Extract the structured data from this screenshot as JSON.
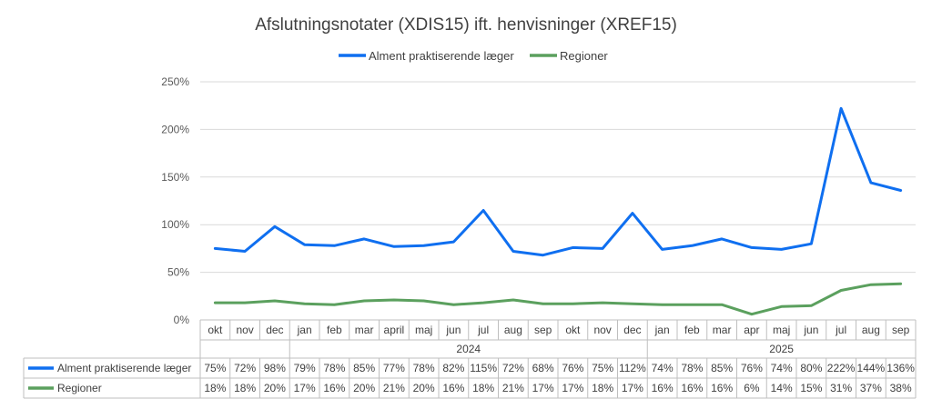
{
  "chart_data": {
    "type": "line",
    "title": "Afslutningsnotater (XDIS15) ift. henvisninger (XREF15)",
    "xlabel": "",
    "ylabel": "",
    "ylim": [
      0,
      250
    ],
    "yticks": [
      "0%",
      "50%",
      "100%",
      "150%",
      "200%",
      "250%"
    ],
    "ytick_values": [
      0,
      50,
      100,
      150,
      200,
      250
    ],
    "grid": true,
    "legend_position": "top",
    "categories": [
      "okt",
      "nov",
      "dec",
      "jan",
      "feb",
      "mar",
      "april",
      "maj",
      "jun",
      "jul",
      "aug",
      "sep",
      "okt",
      "nov",
      "dec",
      "jan",
      "feb",
      "mar",
      "apr",
      "maj",
      "jun",
      "jul",
      "aug",
      "sep"
    ],
    "year_groups": [
      {
        "label": "",
        "start": 0,
        "end": 2
      },
      {
        "label": "2024",
        "start": 3,
        "end": 14
      },
      {
        "label": "2025",
        "start": 15,
        "end": 23
      }
    ],
    "series": [
      {
        "name": "Alment praktiserende læger",
        "color": "#0F6FF0",
        "values": [
          75,
          72,
          98,
          79,
          78,
          85,
          77,
          78,
          82,
          115,
          72,
          68,
          76,
          75,
          112,
          74,
          78,
          85,
          76,
          74,
          80,
          222,
          144,
          136
        ],
        "labels": [
          "75%",
          "72%",
          "98%",
          "79%",
          "78%",
          "85%",
          "77%",
          "78%",
          "82%",
          "115%",
          "72%",
          "68%",
          "76%",
          "75%",
          "112%",
          "74%",
          "78%",
          "85%",
          "76%",
          "74%",
          "80%",
          "222%",
          "144%",
          "136%"
        ]
      },
      {
        "name": "Regioner",
        "color": "#5BA05E",
        "values": [
          18,
          18,
          20,
          17,
          16,
          20,
          21,
          20,
          16,
          18,
          21,
          17,
          17,
          18,
          17,
          16,
          16,
          16,
          6,
          14,
          15,
          31,
          37,
          38
        ],
        "labels": [
          "18%",
          "18%",
          "20%",
          "17%",
          "16%",
          "20%",
          "21%",
          "20%",
          "16%",
          "18%",
          "21%",
          "17%",
          "17%",
          "18%",
          "17%",
          "16%",
          "16%",
          "16%",
          "6%",
          "14%",
          "15%",
          "31%",
          "37%",
          "38%"
        ]
      }
    ]
  }
}
